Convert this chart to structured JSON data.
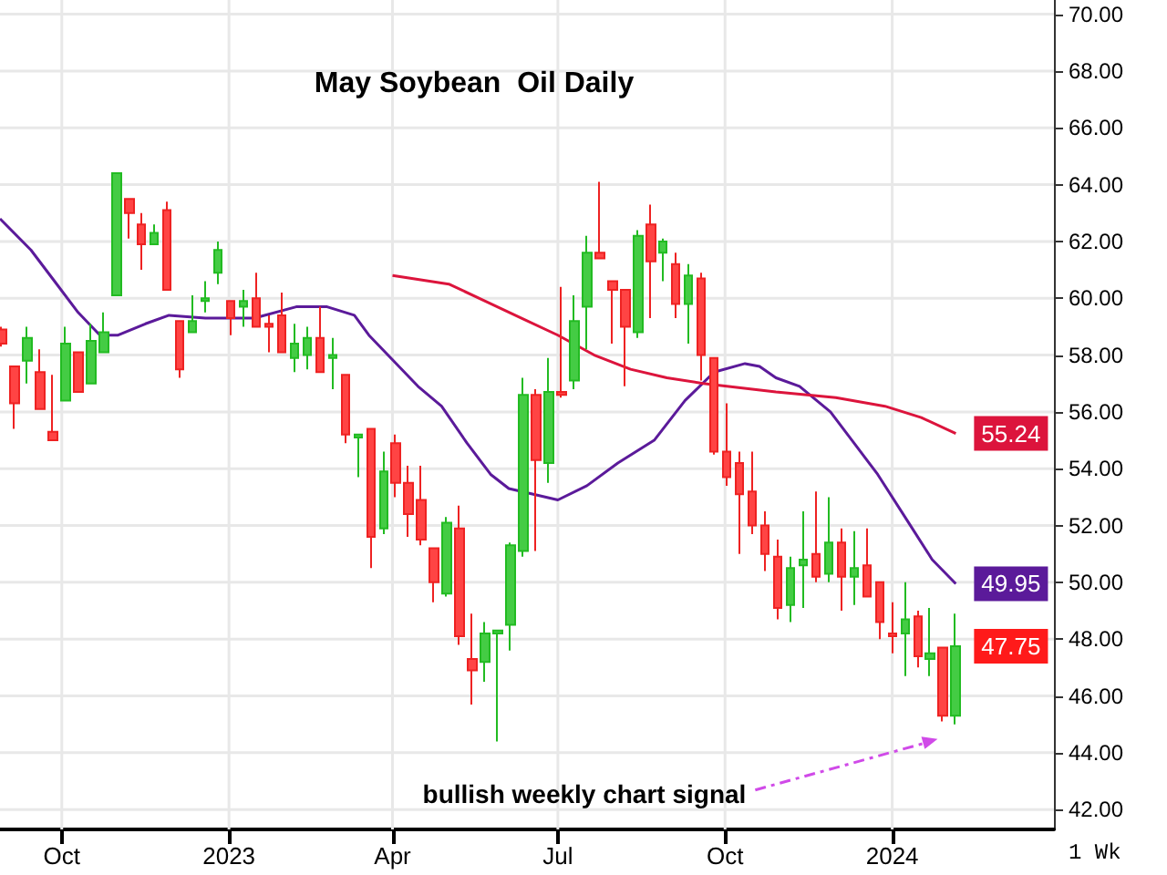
{
  "chart_data": {
    "type": "candlestick",
    "title": "May Soybean  Oil Daily",
    "x": [
      "2022-08-29",
      "2022-09-05",
      "2022-09-12",
      "2022-09-19",
      "2022-09-26",
      "2022-10-03",
      "2022-10-10",
      "2022-10-17",
      "2022-10-24",
      "2022-10-31",
      "2022-11-07",
      "2022-11-14",
      "2022-11-21",
      "2022-11-28",
      "2022-12-05",
      "2022-12-12",
      "2022-12-19",
      "2022-12-26",
      "2023-01-02",
      "2023-01-09",
      "2023-01-16",
      "2023-01-23",
      "2023-01-30",
      "2023-02-06",
      "2023-02-13",
      "2023-02-20",
      "2023-02-27",
      "2023-03-06",
      "2023-03-13",
      "2023-03-20",
      "2023-03-27",
      "2023-04-03",
      "2023-04-10",
      "2023-04-17",
      "2023-04-24",
      "2023-05-01",
      "2023-05-08",
      "2023-05-15",
      "2023-05-22",
      "2023-05-29",
      "2023-06-05",
      "2023-06-12",
      "2023-06-19",
      "2023-06-26",
      "2023-07-03",
      "2023-07-10",
      "2023-07-17",
      "2023-07-24",
      "2023-07-31",
      "2023-08-07",
      "2023-08-14",
      "2023-08-21",
      "2023-08-28",
      "2023-09-04",
      "2023-09-11",
      "2023-09-18",
      "2023-09-25",
      "2023-10-02",
      "2023-10-09",
      "2023-10-16",
      "2023-10-23",
      "2023-10-30",
      "2023-11-06",
      "2023-11-13",
      "2023-11-20",
      "2023-11-27",
      "2023-12-04",
      "2023-12-11",
      "2023-12-18",
      "2023-12-25",
      "2024-01-01",
      "2024-01-08",
      "2024-01-15",
      "2024-01-22",
      "2024-01-29",
      "2024-02-05"
    ],
    "ohlc": [
      [
        58.9,
        59.0,
        58.3,
        58.4
      ],
      [
        57.6,
        57.6,
        55.4,
        56.3
      ],
      [
        57.8,
        59.0,
        57.0,
        58.6
      ],
      [
        57.4,
        58.2,
        56.1,
        56.1
      ],
      [
        55.3,
        57.3,
        55.0,
        55.0
      ],
      [
        56.4,
        59.0,
        56.4,
        58.4
      ],
      [
        58.1,
        58.1,
        56.7,
        56.7
      ],
      [
        57.0,
        59.1,
        57.0,
        58.5
      ],
      [
        58.1,
        59.5,
        58.1,
        58.8
      ],
      [
        60.1,
        64.4,
        60.1,
        64.4
      ],
      [
        63.5,
        63.5,
        62.1,
        63.0
      ],
      [
        62.6,
        63.0,
        61.0,
        61.9
      ],
      [
        61.9,
        62.6,
        61.9,
        62.3
      ],
      [
        63.1,
        63.4,
        60.3,
        60.3
      ],
      [
        59.2,
        59.2,
        57.2,
        57.5
      ],
      [
        58.8,
        60.1,
        58.8,
        59.2
      ],
      [
        59.9,
        60.6,
        59.5,
        60.0
      ],
      [
        60.9,
        62.0,
        60.5,
        61.7
      ],
      [
        59.9,
        59.9,
        58.7,
        59.3
      ],
      [
        59.7,
        60.3,
        59.0,
        59.9
      ],
      [
        60.0,
        60.9,
        59.0,
        59.0
      ],
      [
        59.1,
        59.4,
        58.1,
        59.0
      ],
      [
        59.4,
        60.2,
        58.1,
        58.1
      ],
      [
        57.9,
        59.1,
        57.4,
        58.4
      ],
      [
        58.0,
        59.0,
        57.5,
        58.6
      ],
      [
        58.6,
        59.7,
        57.4,
        57.4
      ],
      [
        57.9,
        58.6,
        56.8,
        58.0
      ],
      [
        57.3,
        57.3,
        54.9,
        55.2
      ],
      [
        55.1,
        55.2,
        53.7,
        55.2
      ],
      [
        55.4,
        55.4,
        50.5,
        51.6
      ],
      [
        51.9,
        54.6,
        51.7,
        53.9
      ],
      [
        54.9,
        55.2,
        53.0,
        53.5
      ],
      [
        53.5,
        54.1,
        51.6,
        52.4
      ],
      [
        52.9,
        54.1,
        51.3,
        51.5
      ],
      [
        51.2,
        51.2,
        49.3,
        50.0
      ],
      [
        49.6,
        52.3,
        49.5,
        52.1
      ],
      [
        51.9,
        52.7,
        47.8,
        48.1
      ],
      [
        47.3,
        48.9,
        45.7,
        46.9
      ],
      [
        47.2,
        48.6,
        46.5,
        48.2
      ],
      [
        48.2,
        48.3,
        44.4,
        48.3
      ],
      [
        48.5,
        51.4,
        47.6,
        51.3
      ],
      [
        51.1,
        57.2,
        50.9,
        56.6
      ],
      [
        56.6,
        56.8,
        51.1,
        54.3
      ],
      [
        54.2,
        57.9,
        53.5,
        56.7
      ],
      [
        56.7,
        60.4,
        56.5,
        56.6
      ],
      [
        57.1,
        60.1,
        56.8,
        59.2
      ],
      [
        59.7,
        62.2,
        58.2,
        61.6
      ],
      [
        61.6,
        64.1,
        61.4,
        61.4
      ],
      [
        60.6,
        60.6,
        58.4,
        60.3
      ],
      [
        60.3,
        60.3,
        56.9,
        59.0
      ],
      [
        58.8,
        62.4,
        58.6,
        62.2
      ],
      [
        62.6,
        63.3,
        59.3,
        61.3
      ],
      [
        61.6,
        62.1,
        60.6,
        62.0
      ],
      [
        61.2,
        61.6,
        59.3,
        59.8
      ],
      [
        59.8,
        61.2,
        58.4,
        60.8
      ],
      [
        60.7,
        60.9,
        57.1,
        58.0
      ],
      [
        57.9,
        57.9,
        54.5,
        54.6
      ],
      [
        54.6,
        56.3,
        53.4,
        53.7
      ],
      [
        54.2,
        54.6,
        51.0,
        53.1
      ],
      [
        53.2,
        54.6,
        51.7,
        52.0
      ],
      [
        52.0,
        52.5,
        50.4,
        51.0
      ],
      [
        50.9,
        51.5,
        48.7,
        49.1
      ],
      [
        49.2,
        50.9,
        48.6,
        50.5
      ],
      [
        50.6,
        52.5,
        49.1,
        50.8
      ],
      [
        51.0,
        53.2,
        50.0,
        50.2
      ],
      [
        50.3,
        53.0,
        50.0,
        51.4
      ],
      [
        51.4,
        51.9,
        49.0,
        50.2
      ],
      [
        50.2,
        51.8,
        49.2,
        50.5
      ],
      [
        50.6,
        51.9,
        49.5,
        49.5
      ],
      [
        50.0,
        50.0,
        48.0,
        48.6
      ],
      [
        48.2,
        49.3,
        47.5,
        48.1
      ],
      [
        48.2,
        50.0,
        46.7,
        48.7
      ],
      [
        48.8,
        49.0,
        47.0,
        47.4
      ],
      [
        47.3,
        49.1,
        46.7,
        47.5
      ],
      [
        47.7,
        47.7,
        45.1,
        45.3
      ],
      [
        45.3,
        48.9,
        45.0,
        47.75
      ]
    ],
    "series": [
      {
        "type": "line",
        "color": "#5b1a9a",
        "x": [
          "2022-08-28",
          "2022-09-14",
          "2022-09-27",
          "2022-10-10",
          "2022-10-22",
          "2022-11-01",
          "2022-11-16",
          "2022-11-29",
          "2022-12-19",
          "2023-01-15",
          "2023-02-07",
          "2023-02-24",
          "2023-03-11",
          "2023-03-19",
          "2023-04-15",
          "2023-04-28",
          "2023-05-12",
          "2023-05-25",
          "2023-06-04",
          "2023-07-01",
          "2023-07-17",
          "2023-08-03",
          "2023-08-23",
          "2023-09-09",
          "2023-09-25",
          "2023-10-12",
          "2023-10-20",
          "2023-10-29",
          "2023-11-11",
          "2023-11-28",
          "2023-12-11",
          "2023-12-24",
          "2024-01-10",
          "2024-01-23",
          "2024-02-05"
        ],
        "values": [
          62.8,
          61.7,
          60.6,
          59.5,
          58.7,
          58.7,
          59.1,
          59.4,
          59.3,
          59.3,
          59.7,
          59.7,
          59.4,
          58.7,
          56.9,
          56.2,
          54.9,
          53.8,
          53.3,
          52.9,
          53.4,
          54.2,
          55.0,
          56.4,
          57.4,
          57.7,
          57.6,
          57.2,
          56.9,
          56.0,
          54.9,
          53.8,
          52.1,
          50.8,
          49.95
        ],
        "value_labels": [
          null,
          null,
          null,
          null,
          null,
          null,
          null,
          null,
          null,
          null,
          null,
          null,
          null,
          null,
          null,
          null,
          null,
          null,
          null,
          null,
          null,
          null,
          null,
          null,
          null,
          null,
          null,
          null,
          null,
          null,
          null,
          null,
          null,
          null,
          "49.95"
        ]
      },
      {
        "type": "line",
        "color": "#dc143c",
        "x": [
          "2023-04-01",
          "2023-05-02",
          "2023-05-22",
          "2023-06-11",
          "2023-07-01",
          "2023-07-21",
          "2023-08-10",
          "2023-08-30",
          "2023-09-19",
          "2023-10-29",
          "2023-12-01",
          "2023-12-28",
          "2024-01-17",
          "2024-02-05"
        ],
        "values": [
          60.8,
          60.5,
          59.9,
          59.3,
          58.7,
          58.0,
          57.5,
          57.2,
          57.0,
          56.7,
          56.5,
          56.2,
          55.8,
          55.24
        ],
        "value_labels": [
          null,
          null,
          null,
          null,
          null,
          null,
          null,
          null,
          null,
          null,
          null,
          null,
          null,
          "55.24"
        ]
      }
    ],
    "marker": "none",
    "xlim": [
      "2022-08-28",
      "2024-03-30"
    ],
    "xticks": [
      {
        "value": "2022-10-01",
        "label": "Oct"
      },
      {
        "value": "2023-01-01",
        "label": "2023"
      },
      {
        "value": "2023-04-01",
        "label": "Apr"
      },
      {
        "value": "2023-07-01",
        "label": "Jul"
      },
      {
        "value": "2023-10-01",
        "label": "Oct"
      },
      {
        "value": "2024-01-01",
        "label": "2024"
      }
    ],
    "ylim": [
      41.3,
      70.5
    ],
    "yticks": [
      {
        "value": 42,
        "label": "42.00"
      },
      {
        "value": 44,
        "label": "44.00"
      },
      {
        "value": 46,
        "label": "46.00"
      },
      {
        "value": 48,
        "label": "48.00"
      },
      {
        "value": 50,
        "label": "50.00"
      },
      {
        "value": 52,
        "label": "52.00"
      },
      {
        "value": 54,
        "label": "54.00"
      },
      {
        "value": 56,
        "label": "56.00"
      },
      {
        "value": 58,
        "label": "58.00"
      },
      {
        "value": 60,
        "label": "60.00"
      },
      {
        "value": 62,
        "label": "62.00"
      },
      {
        "value": 64,
        "label": "64.00"
      },
      {
        "value": 66,
        "label": "66.00"
      },
      {
        "value": 68,
        "label": "68.00"
      },
      {
        "value": 70,
        "label": "70.00"
      }
    ],
    "grid": true,
    "value_labels": [
      null,
      null,
      null,
      null,
      null,
      null,
      null,
      null,
      null,
      null,
      null,
      null,
      null,
      null,
      null,
      null,
      null,
      null,
      null,
      null,
      null,
      null,
      null,
      null,
      null,
      null,
      null,
      null,
      null,
      null,
      null,
      null,
      null,
      null,
      null,
      null,
      null,
      null,
      null,
      null,
      null,
      null,
      null,
      null,
      null,
      null,
      null,
      null,
      null,
      null,
      null,
      null,
      null,
      null,
      null,
      null,
      null,
      null,
      null,
      null,
      null,
      null,
      null,
      null,
      null,
      null,
      null,
      null,
      null,
      null,
      null,
      null,
      null,
      null,
      null,
      "47.75"
    ],
    "annotations": [
      "bullish weekly chart signal",
      "1 Wk"
    ]
  }
}
